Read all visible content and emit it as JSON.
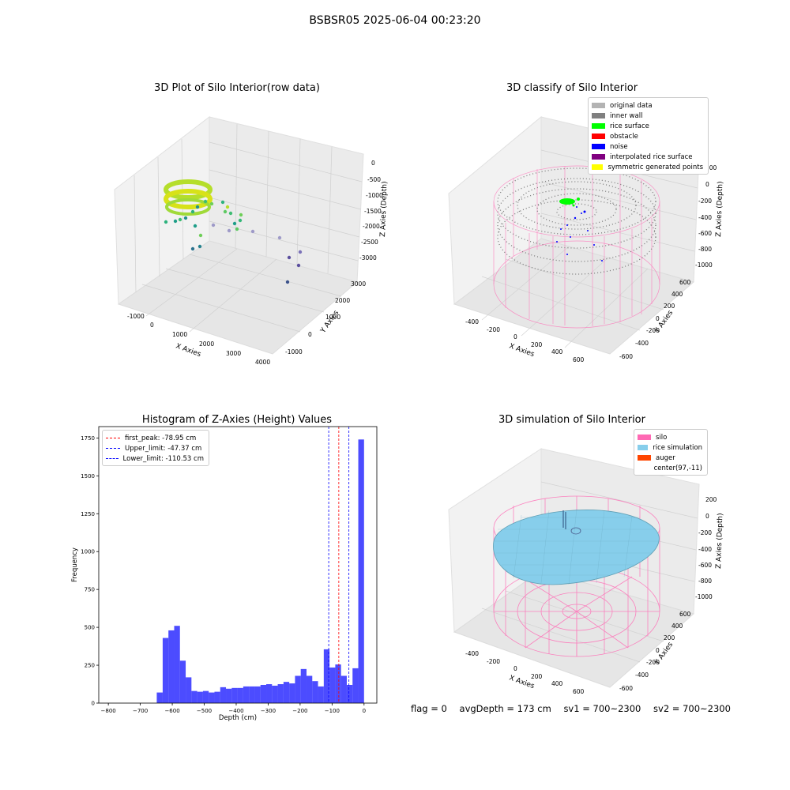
{
  "suptitle": "BSBSR05 2025-06-04 00:23:20",
  "panels": {
    "raw": {
      "title": "3D Plot of Silo Interior(row data)",
      "xlabel": "X Axies",
      "ylabel": "Y Axies",
      "zlabel": "Z Axies (Depth)",
      "xticks": [
        "-1000",
        "0",
        "1000",
        "2000",
        "3000",
        "4000"
      ],
      "yticks": [
        "-1000",
        "0",
        "1000",
        "2000",
        "3000"
      ],
      "zticks": [
        "0",
        "-500",
        "-1000",
        "-1500",
        "-2000",
        "-2500",
        "-3000"
      ]
    },
    "classify": {
      "title": "3D classify of Silo Interior",
      "xlabel": "X Axies",
      "ylabel": "Y Axies",
      "zlabel": "Z Axies (Depth)",
      "xticks": [
        "-400",
        "-200",
        "0",
        "200",
        "400",
        "600"
      ],
      "yticks": [
        "-600",
        "-400",
        "-200",
        "0",
        "200",
        "400",
        "600"
      ],
      "zticks": [
        "200",
        "0",
        "-200",
        "-400",
        "-600",
        "-800",
        "-1000"
      ],
      "legend": [
        {
          "label": "original data",
          "color": "#b3b3b3"
        },
        {
          "label": "inner wall",
          "color": "#808080"
        },
        {
          "label": "rice surface",
          "color": "#00ff00"
        },
        {
          "label": "obstacle",
          "color": "#ff0000"
        },
        {
          "label": "noise",
          "color": "#0000ff"
        },
        {
          "label": "interpolated rice surface",
          "color": "#800080"
        },
        {
          "label": "symmetric generated points",
          "color": "#ffff00"
        }
      ]
    },
    "simulation": {
      "title": "3D simulation of Silo Interior",
      "xlabel": "X Axies",
      "ylabel": "Y Axies",
      "zlabel": "Z Axies (Depth)",
      "xticks": [
        "-400",
        "-200",
        "0",
        "200",
        "400",
        "600"
      ],
      "yticks": [
        "-600",
        "-400",
        "-200",
        "0",
        "200",
        "400",
        "600"
      ],
      "zticks": [
        "200",
        "0",
        "-200",
        "-400",
        "-600",
        "-800",
        "-1000"
      ],
      "legend": [
        {
          "label": "silo",
          "color": "#ff69b4"
        },
        {
          "label": "rice simulation",
          "color": "#87ceeb"
        },
        {
          "label": "auger",
          "color": "#ff4500"
        },
        {
          "label": "center(97,-11)",
          "color": "#ffffff"
        }
      ]
    }
  },
  "chart_data": {
    "type": "bar",
    "title": "Histogram of Z-Axies (Height) Values",
    "xlabel": "Depth (cm)",
    "ylabel": "Frequency",
    "xlim": [
      -830,
      40
    ],
    "ylim": [
      0,
      1825
    ],
    "xticks": [
      -800,
      -700,
      -600,
      -500,
      -400,
      -300,
      -200,
      -100,
      0
    ],
    "yticks": [
      0,
      250,
      500,
      750,
      1000,
      1250,
      1500,
      1750
    ],
    "bar_color": "#0000ff",
    "bins": [
      [
        -648.5,
        -630,
        70
      ],
      [
        -630,
        -612,
        430
      ],
      [
        -612,
        -594,
        480
      ],
      [
        -594,
        -576,
        510
      ],
      [
        -576,
        -558,
        280
      ],
      [
        -558,
        -540,
        170
      ],
      [
        -540,
        -522,
        80
      ],
      [
        -522,
        -504,
        75
      ],
      [
        -504,
        -486,
        80
      ],
      [
        -486,
        -468,
        70
      ],
      [
        -468,
        -450,
        75
      ],
      [
        -450,
        -432,
        105
      ],
      [
        -432,
        -414,
        95
      ],
      [
        -414,
        -396,
        100
      ],
      [
        -396,
        -378,
        100
      ],
      [
        -378,
        -360,
        110
      ],
      [
        -360,
        -342,
        110
      ],
      [
        -342,
        -324,
        110
      ],
      [
        -324,
        -306,
        120
      ],
      [
        -306,
        -288,
        125
      ],
      [
        -288,
        -270,
        115
      ],
      [
        -270,
        -252,
        125
      ],
      [
        -252,
        -234,
        140
      ],
      [
        -234,
        -216,
        130
      ],
      [
        -216,
        -198,
        180
      ],
      [
        -198,
        -180,
        225
      ],
      [
        -180,
        -162,
        180
      ],
      [
        -162,
        -144,
        145
      ],
      [
        -144,
        -126,
        110
      ],
      [
        -126,
        -108,
        355
      ],
      [
        -108,
        -90,
        235
      ],
      [
        -90,
        -72,
        255
      ],
      [
        -72,
        -54,
        180
      ],
      [
        -54,
        -36,
        120
      ],
      [
        -36,
        -18,
        230
      ],
      [
        -18,
        0,
        1740
      ],
      [
        0,
        -1,
        0
      ]
    ],
    "bins_note": "",
    "vlines": [
      {
        "label": "first_peak: -78.95 cm",
        "x": -78.95,
        "color": "#ff0000"
      },
      {
        "label": "Upper_limit: -47.37 cm",
        "x": -47.37,
        "color": "#0000ff"
      },
      {
        "label": "Lower_limit: -110.53 cm",
        "x": -110.53,
        "color": "#0000ff"
      }
    ]
  },
  "footer": {
    "flag": "flag = 0",
    "avg": "avgDepth = 173 cm",
    "sv1": "sv1 = 700~2300",
    "sv2": "sv2 = 700~2300"
  }
}
